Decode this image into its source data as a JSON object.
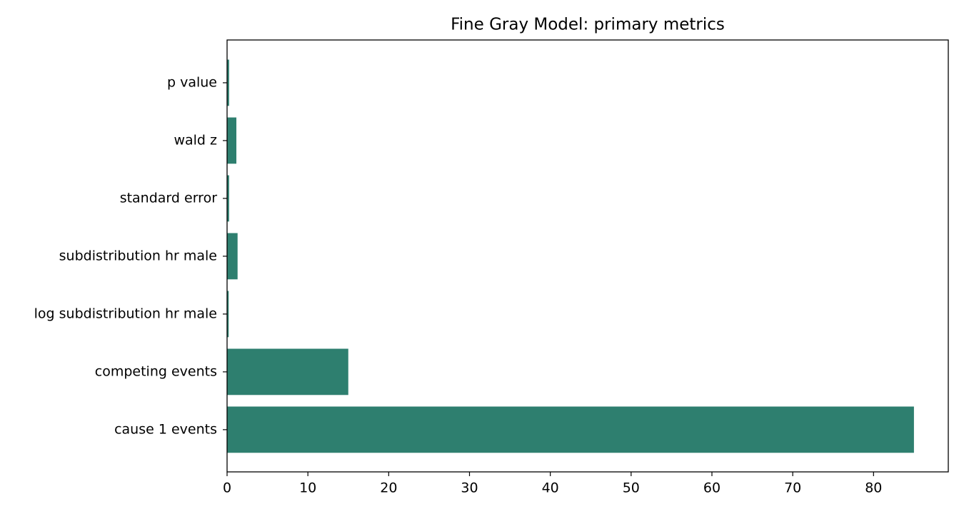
{
  "chart_data": {
    "type": "barh",
    "title": "Fine Gray Model: primary metrics",
    "categories": [
      "cause 1 events",
      "competing events",
      "log subdistribution hr male",
      "subdistribution hr male",
      "standard error",
      "wald z",
      "p value"
    ],
    "values": [
      85,
      15,
      0.2,
      1.3,
      0.25,
      1.15,
      0.25
    ],
    "color": "#2e7f6f",
    "xlim": [
      0,
      89.25
    ],
    "xticks": [
      0,
      10,
      20,
      30,
      40,
      50,
      60,
      70,
      80
    ],
    "grid": false
  }
}
